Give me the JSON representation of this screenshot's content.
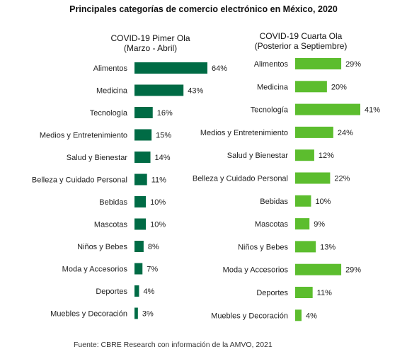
{
  "title": "Principales categorías de comercio electrónico en México, 2020",
  "source": "Fuente: CBRE Research con información de la AMVO, 2021",
  "charts": [
    {
      "subtitle_line1": "COVID-19 Pimer Ola",
      "subtitle_line2": "(Marzo - Abril)"
    },
    {
      "subtitle_line1": "COVID-19 Cuarta Ola",
      "subtitle_line2": "(Posterior a Septiembre)"
    }
  ],
  "chart_data": [
    {
      "type": "bar",
      "orientation": "horizontal",
      "title": "COVID-19 Pimer Ola (Marzo - Abril)",
      "color": "#006b45",
      "categories": [
        "Alimentos",
        "Medicina",
        "Tecnología",
        "Medios y Entretenimiento",
        "Salud y Bienestar",
        "Belleza y Cuidado Personal",
        "Bebidas",
        "Mascotas",
        "Niños y Bebes",
        "Moda y Accesorios",
        "Deportes",
        "Muebles y Decoración"
      ],
      "values": [
        64,
        43,
        16,
        15,
        14,
        11,
        10,
        10,
        8,
        7,
        4,
        3
      ],
      "value_labels": [
        "64%",
        "43%",
        "16%",
        "15%",
        "14%",
        "11%",
        "10%",
        "10%",
        "8%",
        "7%",
        "4%",
        "3%"
      ],
      "grid": false
    },
    {
      "type": "bar",
      "orientation": "horizontal",
      "title": "COVID-19 Cuarta Ola (Posterior a Septiembre)",
      "color": "#5cbd2e",
      "categories": [
        "Alimentos",
        "Medicina",
        "Tecnología",
        "Medios y Entretenimiento",
        "Salud y Bienestar",
        "Belleza y Cuidado Personal",
        "Bebidas",
        "Mascotas",
        "Niños y Bebes",
        "Moda y Accesorios",
        "Deportes",
        "Muebles y Decoración"
      ],
      "values": [
        29,
        20,
        41,
        24,
        12,
        22,
        10,
        9,
        13,
        29,
        11,
        4
      ],
      "value_labels": [
        "29%",
        "20%",
        "41%",
        "24%",
        "12%",
        "22%",
        "10%",
        "9%",
        "13%",
        "29%",
        "11%",
        "4%"
      ],
      "grid": false
    }
  ]
}
